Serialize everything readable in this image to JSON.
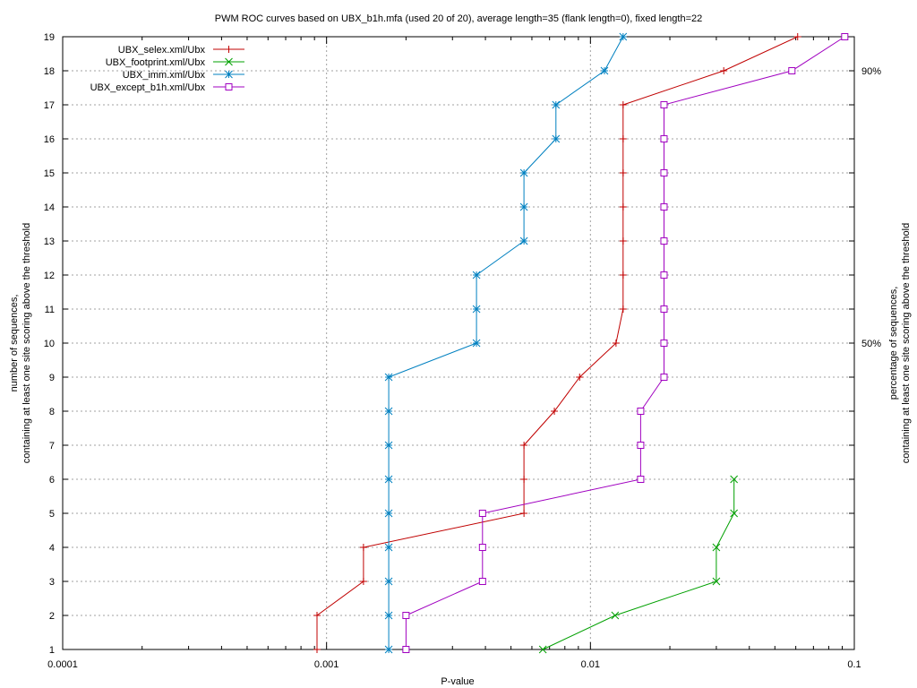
{
  "chart_data": {
    "type": "line",
    "title": "PWM ROC curves based on UBX_b1h.mfa (used 20 of 20), average length=35 (flank length=0), fixed length=22",
    "xlabel": "P-value",
    "ylabel_lines": [
      "number of sequences,",
      "containing at least one site scoring above the threshold"
    ],
    "y2label_lines": [
      "percentage of sequences,",
      "containing at least one site scoring above the threshold"
    ],
    "x_scale": "log",
    "xlim": [
      0.0001,
      0.1
    ],
    "ylim": [
      1,
      19
    ],
    "x_ticks": [
      {
        "value": 0.0001,
        "label": "0.0001"
      },
      {
        "value": 0.001,
        "label": "0.001"
      },
      {
        "value": 0.01,
        "label": "0.01"
      },
      {
        "value": 0.1,
        "label": "0.1"
      }
    ],
    "y_ticks": [
      1,
      2,
      3,
      4,
      5,
      6,
      7,
      8,
      9,
      10,
      11,
      12,
      13,
      14,
      15,
      16,
      17,
      18,
      19
    ],
    "y2_ticks": [
      {
        "value": 10,
        "label": "50%"
      },
      {
        "value": 18,
        "label": "90%"
      }
    ],
    "grid": true,
    "legend_position": "top-left",
    "series": [
      {
        "name": "UBX_selex.xml/Ubx",
        "color": "#c00000",
        "marker": "plus",
        "points": [
          [
            0.00092,
            1
          ],
          [
            0.00092,
            2
          ],
          [
            0.00138,
            3
          ],
          [
            0.00138,
            4
          ],
          [
            0.0056,
            5
          ],
          [
            0.0056,
            6
          ],
          [
            0.0056,
            7
          ],
          [
            0.0073,
            8
          ],
          [
            0.0091,
            9
          ],
          [
            0.0125,
            10
          ],
          [
            0.0133,
            11
          ],
          [
            0.0133,
            12
          ],
          [
            0.0133,
            13
          ],
          [
            0.0133,
            14
          ],
          [
            0.0133,
            15
          ],
          [
            0.0133,
            16
          ],
          [
            0.0133,
            17
          ],
          [
            0.032,
            18
          ],
          [
            0.061,
            19
          ]
        ]
      },
      {
        "name": "UBX_footprint.xml/Ubx",
        "color": "#00a000",
        "marker": "x",
        "points": [
          [
            0.0066,
            1
          ],
          [
            0.0124,
            2
          ],
          [
            0.03,
            3
          ],
          [
            0.03,
            4
          ],
          [
            0.035,
            5
          ],
          [
            0.035,
            6
          ]
        ]
      },
      {
        "name": "UBX_imm.xml/Ubx",
        "color": "#0080c0",
        "marker": "star",
        "points": [
          [
            0.00172,
            1
          ],
          [
            0.00172,
            2
          ],
          [
            0.00172,
            3
          ],
          [
            0.00172,
            4
          ],
          [
            0.00172,
            5
          ],
          [
            0.00172,
            6
          ],
          [
            0.00172,
            7
          ],
          [
            0.00172,
            8
          ],
          [
            0.00172,
            9
          ],
          [
            0.0037,
            10
          ],
          [
            0.0037,
            11
          ],
          [
            0.0037,
            12
          ],
          [
            0.0056,
            13
          ],
          [
            0.0056,
            14
          ],
          [
            0.0056,
            15
          ],
          [
            0.0074,
            16
          ],
          [
            0.0074,
            17
          ],
          [
            0.0113,
            18
          ],
          [
            0.0133,
            19
          ]
        ]
      },
      {
        "name": "UBX_except_b1h.xml/Ubx",
        "color": "#a000c0",
        "marker": "square",
        "points": [
          [
            0.002,
            1
          ],
          [
            0.002,
            2
          ],
          [
            0.0039,
            3
          ],
          [
            0.0039,
            4
          ],
          [
            0.0039,
            5
          ],
          [
            0.0155,
            6
          ],
          [
            0.0155,
            7
          ],
          [
            0.0155,
            8
          ],
          [
            0.019,
            9
          ],
          [
            0.019,
            10
          ],
          [
            0.019,
            11
          ],
          [
            0.019,
            12
          ],
          [
            0.019,
            13
          ],
          [
            0.019,
            14
          ],
          [
            0.019,
            15
          ],
          [
            0.019,
            16
          ],
          [
            0.019,
            17
          ],
          [
            0.058,
            18
          ],
          [
            0.092,
            19
          ]
        ]
      }
    ]
  }
}
